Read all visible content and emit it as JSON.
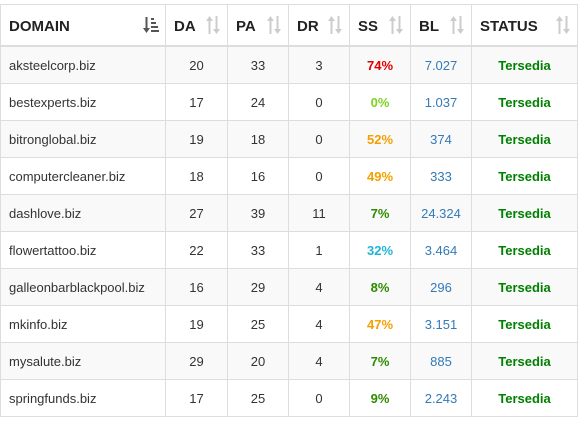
{
  "headers": [
    "DOMAIN",
    "DA",
    "PA",
    "DR",
    "SS",
    "BL",
    "STATUS"
  ],
  "rows": [
    {
      "domain": "aksteelcorp.biz",
      "da": "20",
      "pa": "33",
      "dr": "3",
      "ss": "74%",
      "ss_color": "#e00000",
      "bl": "7.027",
      "status": "Tersedia"
    },
    {
      "domain": "bestexperts.biz",
      "da": "17",
      "pa": "24",
      "dr": "0",
      "ss": "0%",
      "ss_color": "#7ed321",
      "bl": "1.037",
      "status": "Tersedia"
    },
    {
      "domain": "bitronglobal.biz",
      "da": "19",
      "pa": "18",
      "dr": "0",
      "ss": "52%",
      "ss_color": "#f5a000",
      "bl": "374",
      "status": "Tersedia"
    },
    {
      "domain": "computercleaner.biz",
      "da": "18",
      "pa": "16",
      "dr": "0",
      "ss": "49%",
      "ss_color": "#f5a000",
      "bl": "333",
      "status": "Tersedia"
    },
    {
      "domain": "dashlove.biz",
      "da": "27",
      "pa": "39",
      "dr": "11",
      "ss": "7%",
      "ss_color": "#2e8b00",
      "bl": "24.324",
      "status": "Tersedia"
    },
    {
      "domain": "flowertattoo.biz",
      "da": "22",
      "pa": "33",
      "dr": "1",
      "ss": "32%",
      "ss_color": "#1fb6d6",
      "bl": "3.464",
      "status": "Tersedia"
    },
    {
      "domain": "galleonbarblackpool.biz",
      "da": "16",
      "pa": "29",
      "dr": "4",
      "ss": "8%",
      "ss_color": "#2e8b00",
      "bl": "296",
      "status": "Tersedia"
    },
    {
      "domain": "mkinfo.biz",
      "da": "19",
      "pa": "25",
      "dr": "4",
      "ss": "47%",
      "ss_color": "#f5a000",
      "bl": "3.151",
      "status": "Tersedia"
    },
    {
      "domain": "mysalute.biz",
      "da": "29",
      "pa": "20",
      "dr": "4",
      "ss": "7%",
      "ss_color": "#2e8b00",
      "bl": "885",
      "status": "Tersedia"
    },
    {
      "domain": "springfunds.biz",
      "da": "17",
      "pa": "25",
      "dr": "0",
      "ss": "9%",
      "ss_color": "#2e8b00",
      "bl": "2.243",
      "status": "Tersedia"
    }
  ],
  "colors": {
    "bl_link": "#337ab7",
    "status_available": "#008000",
    "stripe": "#f9f9f9",
    "border": "#dddddd"
  },
  "sort": {
    "active_column": "DOMAIN",
    "direction": "ascending",
    "icon_active": "sort-alpha-asc-icon",
    "icon_inactive": "sort-both-icon"
  }
}
